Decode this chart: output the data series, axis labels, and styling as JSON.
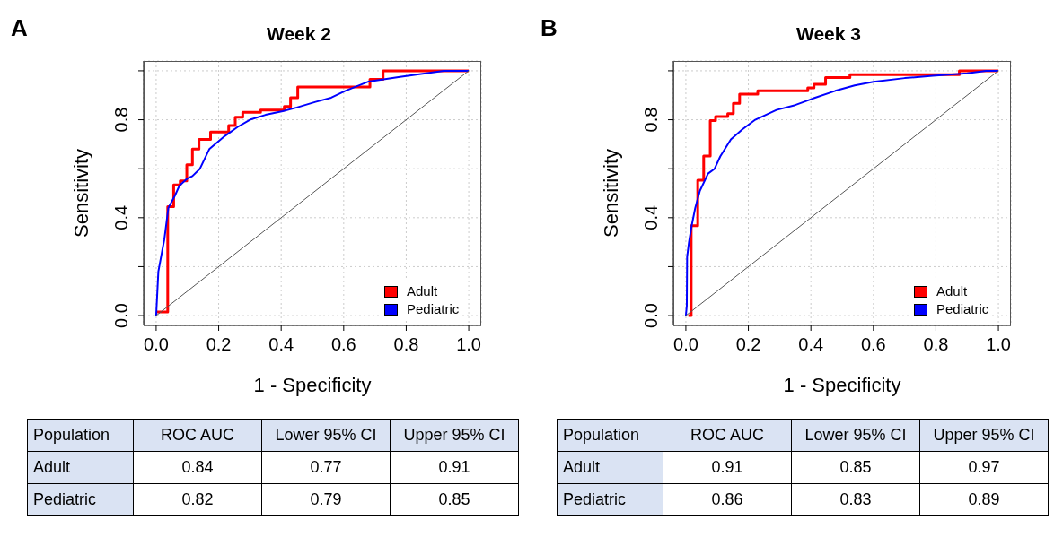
{
  "chart_data": [
    {
      "type": "line",
      "title": "Week 2",
      "xlabel": "1 - Specificity",
      "ylabel": "Sensitivity",
      "xlim": [
        -0.04,
        1.04
      ],
      "ylim": [
        -0.04,
        1.04
      ],
      "xticks": [
        {
          "value": 0,
          "label": "0.0"
        },
        {
          "value": 0.2,
          "label": "0.2"
        },
        {
          "value": 0.4,
          "label": "0.4"
        },
        {
          "value": 0.6,
          "label": "0.6"
        },
        {
          "value": 0.8,
          "label": "0.8"
        },
        {
          "value": 1,
          "label": "1.0"
        }
      ],
      "yticks": [
        {
          "value": 0,
          "label": "0.0"
        },
        {
          "value": 0.2,
          "label": null
        },
        {
          "value": 0.4,
          "label": "0.4"
        },
        {
          "value": 0.6,
          "label": null
        },
        {
          "value": 0.8,
          "label": "0.8"
        },
        {
          "value": 1,
          "label": null
        }
      ],
      "grid": true,
      "legend": "bottom right",
      "marker": "none",
      "line_style": "solid",
      "series": [
        {
          "name": "Adult",
          "type": "step",
          "color": "#ff0000",
          "x": [
            0,
            0.037,
            0.056,
            0.077,
            0.098,
            0.116,
            0.137,
            0.174,
            0.232,
            0.253,
            0.277,
            0.334,
            0.41,
            0.43,
            0.453,
            0.684,
            0.726,
            1
          ],
          "values": [
            0.015,
            0.445,
            0.534,
            0.55,
            0.616,
            0.68,
            0.72,
            0.75,
            0.776,
            0.81,
            0.83,
            0.84,
            0.854,
            0.89,
            0.934,
            0.965,
            1,
            1
          ]
        },
        {
          "name": "Pediatric",
          "type": "line",
          "color": "#0000ff",
          "x": [
            0,
            0.007,
            0.02,
            0.026,
            0.039,
            0.06,
            0.074,
            0.1,
            0.116,
            0.14,
            0.17,
            0.216,
            0.26,
            0.3,
            0.35,
            0.405,
            0.45,
            0.51,
            0.56,
            0.605,
            0.68,
            0.78,
            0.92,
            1
          ],
          "values": [
            0,
            0.18,
            0.27,
            0.31,
            0.44,
            0.49,
            0.53,
            0.56,
            0.57,
            0.6,
            0.68,
            0.73,
            0.77,
            0.8,
            0.82,
            0.835,
            0.85,
            0.873,
            0.89,
            0.918,
            0.956,
            0.975,
            1,
            1
          ]
        },
        {
          "type": "line",
          "color": "#555555",
          "x": [
            0,
            1
          ],
          "values": [
            0,
            1
          ]
        }
      ],
      "annotations": [
        "A",
        "Population",
        "ROC AUC",
        "Lower 95% CI",
        "Upper 95% CI",
        "Adult",
        "0.84",
        "0.77",
        "0.91",
        "Pediatric",
        "0.82",
        "0.79",
        "0.85"
      ]
    },
    {
      "type": "line",
      "title": "Week 3",
      "xlabel": "1 - Specificity",
      "ylabel": "Sensitivity",
      "xlim": [
        -0.04,
        1.04
      ],
      "ylim": [
        -0.04,
        1.04
      ],
      "xticks": [
        {
          "value": 0,
          "label": "0.0"
        },
        {
          "value": 0.2,
          "label": "0.2"
        },
        {
          "value": 0.4,
          "label": "0.4"
        },
        {
          "value": 0.6,
          "label": "0.6"
        },
        {
          "value": 0.8,
          "label": "0.8"
        },
        {
          "value": 1,
          "label": "1.0"
        }
      ],
      "yticks": [
        {
          "value": 0,
          "label": "0.0"
        },
        {
          "value": 0.2,
          "label": null
        },
        {
          "value": 0.4,
          "label": "0.4"
        },
        {
          "value": 0.6,
          "label": null
        },
        {
          "value": 0.8,
          "label": "0.8"
        },
        {
          "value": 1,
          "label": null
        }
      ],
      "grid": true,
      "legend": "bottom right",
      "marker": "none",
      "line_style": "solid",
      "series": [
        {
          "name": "Adult",
          "type": "step",
          "color": "#ff0000",
          "x": [
            0.008,
            0.017,
            0.038,
            0.057,
            0.078,
            0.095,
            0.134,
            0.152,
            0.172,
            0.23,
            0.39,
            0.41,
            0.447,
            0.525,
            0.875,
            1
          ],
          "values": [
            0,
            0.367,
            0.553,
            0.652,
            0.797,
            0.813,
            0.825,
            0.867,
            0.905,
            0.918,
            0.93,
            0.945,
            0.972,
            0.984,
            1,
            1
          ]
        },
        {
          "name": "Pediatric",
          "type": "line",
          "color": "#0000ff",
          "x": [
            0,
            0.003,
            0.004,
            0.01,
            0.019,
            0.03,
            0.045,
            0.071,
            0.092,
            0.11,
            0.144,
            0.18,
            0.222,
            0.29,
            0.35,
            0.405,
            0.478,
            0.54,
            0.6,
            0.7,
            0.79,
            0.9,
            0.96,
            1
          ],
          "values": [
            0,
            0.04,
            0.24,
            0.3,
            0.37,
            0.44,
            0.51,
            0.58,
            0.6,
            0.65,
            0.72,
            0.76,
            0.8,
            0.84,
            0.86,
            0.886,
            0.918,
            0.94,
            0.955,
            0.97,
            0.98,
            0.99,
            1,
            1
          ]
        },
        {
          "type": "line",
          "color": "#555555",
          "x": [
            0,
            1
          ],
          "values": [
            0,
            1
          ]
        }
      ],
      "annotations": [
        "B",
        "Population",
        "ROC AUC",
        "Lower 95% CI",
        "Upper 95% CI",
        "Adult",
        "0.91",
        "0.85",
        "0.97",
        "Pediatric",
        "0.86",
        "0.83",
        "0.89"
      ]
    }
  ]
}
